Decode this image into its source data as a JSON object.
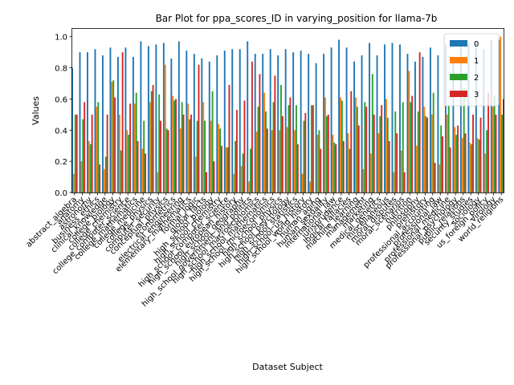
{
  "chart_data": {
    "type": "bar",
    "title": "Bar Plot for ppa_scores_ID in varying_position for llama-7b",
    "xlabel": "Dataset Subject",
    "ylabel": "Values",
    "ylim": [
      0,
      1.05
    ],
    "yticks": [
      "0.0",
      "0.2",
      "0.4",
      "0.6",
      "0.8",
      "1.0"
    ],
    "grid": false,
    "legend_position": "top-right",
    "categories": [
      "abstract_algebra",
      "anatomy",
      "astronomy",
      "business_ethics",
      "clinical_knowledge",
      "college_biology",
      "college_chemistry",
      "college_computer_science",
      "college_mathematics",
      "college_medicine",
      "college_physics",
      "computer_security",
      "conceptual_physics",
      "econometrics",
      "electrical_engineering",
      "elementary_mathematics",
      "formal_logic",
      "global_facts",
      "high_school_biology",
      "high_school_chemistry",
      "high_school_computer_science",
      "high_school_european_history",
      "high_school_geography",
      "high_school_government_and_politics",
      "high_school_macroeconomics",
      "high_school_mathematics",
      "high_school_microeconomics",
      "high_school_physics",
      "high_school_psychology",
      "high_school_statistics",
      "high_school_us_history",
      "high_school_world_history",
      "human_aging",
      "human_sexuality",
      "international_law",
      "jurisprudence",
      "logical_fallacies",
      "machine_learning",
      "management",
      "marketing",
      "medical_genetics",
      "miscellaneous",
      "moral_disputes",
      "moral_scenarios",
      "nutrition",
      "philosophy",
      "prehistory",
      "professional_accounting",
      "professional_law",
      "professional_medicine",
      "professional_psychology",
      "public_relations",
      "security_studies",
      "sociology",
      "us_foreign_policy",
      "virology",
      "world_religions"
    ],
    "series": [
      {
        "name": "0",
        "color": "#1f77b4",
        "values": [
          0.8,
          0.9,
          0.9,
          0.92,
          0.88,
          0.93,
          0.87,
          0.93,
          0.87,
          0.97,
          0.94,
          0.95,
          0.96,
          0.86,
          0.97,
          0.91,
          0.89,
          0.86,
          0.84,
          0.88,
          0.91,
          0.92,
          0.92,
          0.97,
          0.89,
          0.89,
          0.92,
          0.88,
          0.92,
          0.9,
          0.91,
          0.89,
          0.83,
          0.89,
          0.93,
          0.98,
          0.93,
          0.84,
          0.88,
          0.96,
          0.88,
          0.95,
          0.96,
          0.95,
          0.89,
          0.84,
          0.87,
          0.93,
          0.88,
          0.95,
          0.87,
          0.95,
          0.96,
          0.97,
          0.92,
          0.98,
          0.98
        ]
      },
      {
        "name": "1",
        "color": "#ff7f0e",
        "values": [
          0.12,
          0.2,
          0.33,
          0.55,
          0.15,
          0.71,
          0.5,
          0.4,
          0.57,
          0.28,
          0.58,
          0.13,
          0.82,
          0.62,
          0.41,
          0.57,
          0.23,
          0.58,
          0.46,
          0.44,
          0.29,
          0.12,
          0.17,
          0.07,
          0.39,
          0.64,
          0.4,
          0.4,
          0.42,
          0.4,
          0.12,
          0.07,
          0.37,
          0.61,
          0.37,
          0.61,
          0.38,
          0.61,
          0.15,
          0.25,
          0.38,
          0.6,
          0.13,
          0.27,
          0.78,
          0.3,
          0.55,
          0.5,
          0.18,
          0.5,
          0.42,
          0.35,
          0.32,
          0.35,
          0.25,
          0.55,
          1.0
        ]
      },
      {
        "name": "2",
        "color": "#2ca02c",
        "values": [
          0.5,
          0.47,
          0.31,
          0.58,
          0.23,
          0.72,
          0.27,
          0.37,
          0.64,
          0.46,
          0.65,
          0.63,
          0.41,
          0.59,
          0.58,
          0.47,
          0.46,
          0.46,
          0.65,
          0.41,
          0.29,
          0.33,
          0.25,
          0.28,
          0.55,
          0.52,
          0.58,
          0.69,
          0.56,
          0.56,
          0.46,
          0.56,
          0.4,
          0.49,
          0.32,
          0.59,
          0.28,
          0.55,
          0.58,
          0.76,
          0.49,
          0.48,
          0.52,
          0.58,
          0.58,
          0.52,
          0.49,
          0.64,
          0.43,
          0.56,
          0.37,
          0.67,
          0.31,
          0.34,
          0.4,
          0.62,
          0.5
        ]
      },
      {
        "name": "3",
        "color": "#d62728",
        "values": [
          0.5,
          0.58,
          0.5,
          0.18,
          0.5,
          0.61,
          0.9,
          0.57,
          0.33,
          0.25,
          0.69,
          0.46,
          0.4,
          0.6,
          0.5,
          0.5,
          0.82,
          0.13,
          0.2,
          0.3,
          0.69,
          0.53,
          0.59,
          0.84,
          0.76,
          0.41,
          0.75,
          0.49,
          0.61,
          0.31,
          0.51,
          0.56,
          0.28,
          0.5,
          0.31,
          0.33,
          0.65,
          0.43,
          0.55,
          0.5,
          0.56,
          0.33,
          0.38,
          0.13,
          0.62,
          0.9,
          0.48,
          0.19,
          0.36,
          0.29,
          0.43,
          0.38,
          0.5,
          0.48,
          0.64,
          0.5,
          0.6
        ]
      }
    ]
  }
}
